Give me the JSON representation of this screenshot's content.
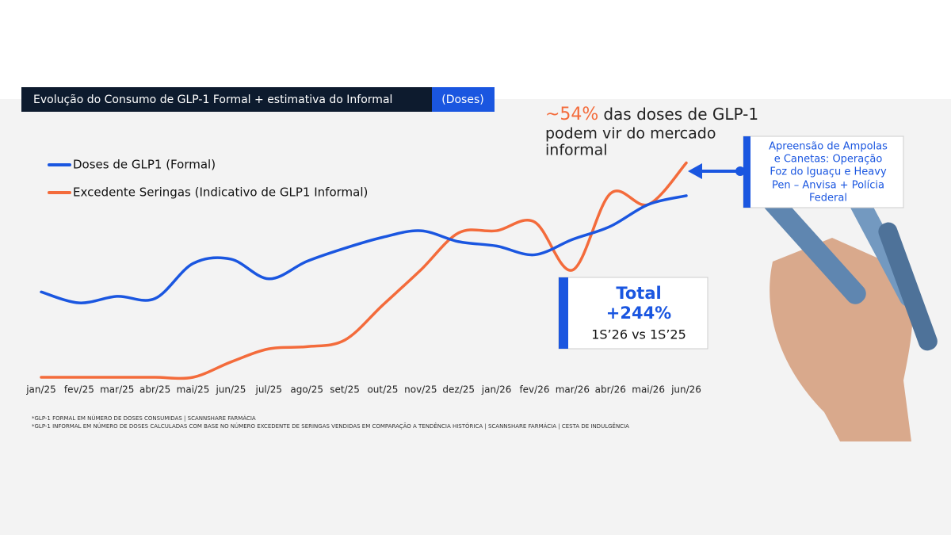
{
  "chart_data": {
    "type": "line",
    "title": "Evolução do Consumo de GLP-1 Formal + estimativa do Informal",
    "unit_label": "(Doses)",
    "categories": [
      "jan/25",
      "fev/25",
      "mar/25",
      "abr/25",
      "mai/25",
      "jun/25",
      "jul/25",
      "ago/25",
      "set/25",
      "out/25",
      "nov/25",
      "dez/25",
      "jan/26",
      "fev/26",
      "mar/26",
      "abr/26",
      "mai/26",
      "jun/26"
    ],
    "ylim": [
      0,
      100
    ],
    "series": [
      {
        "name": "Doses de GLP1 (Formal)",
        "color": "#1a56e0",
        "values": [
          39,
          34,
          37,
          36,
          52,
          54,
          45,
          53,
          59,
          64,
          67,
          62,
          60,
          56,
          63,
          69,
          79,
          83
        ]
      },
      {
        "name": "Excedente Seringas (Indicativo de GLP1 Informal)",
        "color": "#f36b3b",
        "values": [
          0,
          0,
          0,
          0,
          0,
          7,
          13,
          14,
          17,
          33,
          49,
          66,
          67,
          71,
          49,
          84,
          79,
          98
        ]
      }
    ],
    "annotation": {
      "highlight": "~54%",
      "text": "das doses de GLP-1",
      "lines": [
        "podem vir do mercado",
        "informal"
      ]
    },
    "callout": {
      "lines": [
        "Apreensão de Ampolas",
        "e Canetas: Operação",
        "Foz do Iguaçu e Heavy",
        "Pen – Anvisa + Polícia",
        "Federal"
      ]
    },
    "total": {
      "label": "Total",
      "value": "+244%",
      "period": "1S’26 vs 1S’25"
    },
    "footnotes": [
      "*GLP-1 FORMAL EM NÚMERO DE DOSES CONSUMIDAS | SCANNSHARE FARMÁCIA",
      "*GLP-1 INFORMAL EM NÚMERO DE DOSES CALCULADAS COM BASE NO NÚMERO EXCEDENTE DE SERINGAS VENDIDAS EM COMPARAÇÃO A TENDÊNCIA HISTÓRICA | SCANNSHARE FARMÁCIA | CESTA DE INDULGÊNCIA"
    ]
  }
}
